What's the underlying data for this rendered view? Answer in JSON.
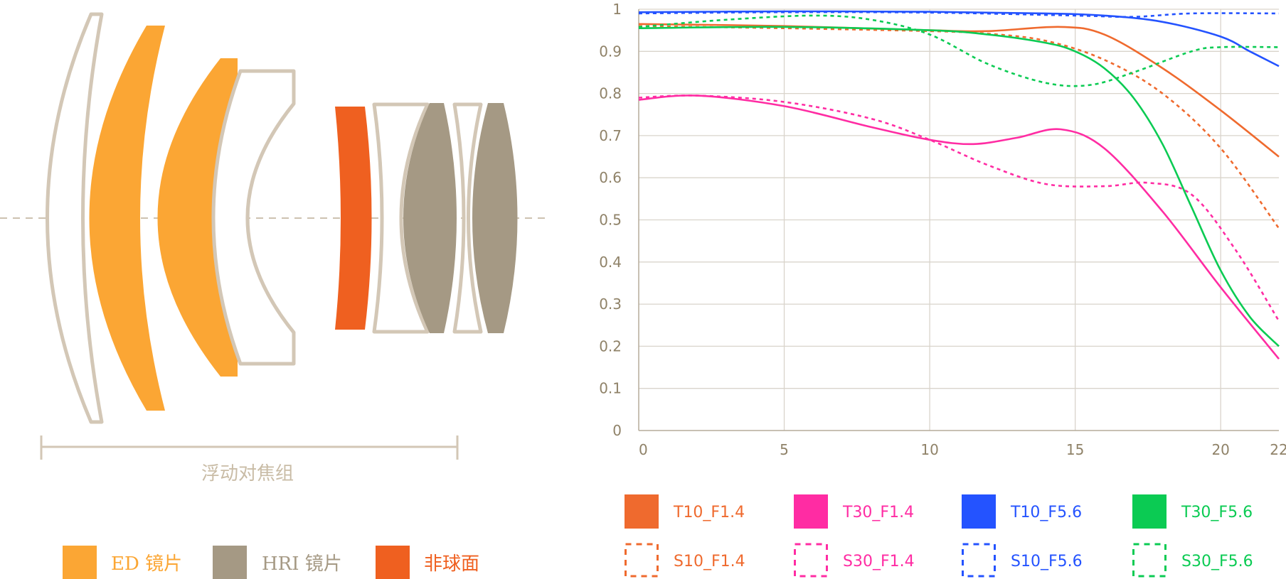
{
  "diagram": {
    "caption": "浮动对焦组",
    "legend": [
      {
        "label": "ED 镜片",
        "color": "#fba634"
      },
      {
        "label": "HRI 镜片",
        "color": "#a59984"
      },
      {
        "label": "非球面",
        "color": "#ef6020"
      }
    ],
    "colors": {
      "outline": "#d3c7b6",
      "axis": "#cdc2b0"
    }
  },
  "chart_data": {
    "type": "line",
    "title": "",
    "xlabel": "",
    "ylabel": "",
    "xlim": [
      0,
      22
    ],
    "ylim": [
      0,
      1
    ],
    "x_ticks": [
      "0",
      "5",
      "10",
      "15",
      "20",
      "22"
    ],
    "y_ticks": [
      "0",
      "0.1",
      "0.2",
      "0.3",
      "0.4",
      "0.5",
      "0.6",
      "0.7",
      "0.8",
      "0.9",
      "1"
    ],
    "grid": true,
    "series": [
      {
        "name": "T10_F1.4",
        "color": "#ef6a2e",
        "dashed": false,
        "x": [
          0,
          5,
          10,
          12,
          14.5,
          16,
          18,
          20,
          22
        ],
        "y": [
          0.965,
          0.96,
          0.95,
          0.948,
          0.958,
          0.94,
          0.86,
          0.76,
          0.65
        ]
      },
      {
        "name": "S10_F1.4",
        "color": "#ef6a2e",
        "dashed": true,
        "x": [
          0,
          5,
          10,
          12,
          14,
          16,
          18,
          20,
          22
        ],
        "y": [
          0.96,
          0.955,
          0.948,
          0.942,
          0.925,
          0.88,
          0.8,
          0.67,
          0.48
        ]
      },
      {
        "name": "T30_F1.4",
        "color": "#ff2ca3",
        "dashed": false,
        "x": [
          0,
          2,
          5,
          8,
          10,
          11.5,
          13,
          14.5,
          16,
          18,
          20,
          22
        ],
        "y": [
          0.785,
          0.795,
          0.77,
          0.72,
          0.69,
          0.68,
          0.695,
          0.715,
          0.67,
          0.52,
          0.34,
          0.17
        ]
      },
      {
        "name": "S30_F1.4",
        "color": "#ff2ca3",
        "dashed": true,
        "x": [
          0,
          2,
          5,
          8,
          10,
          12,
          14,
          16,
          17.5,
          19,
          20.5,
          22
        ],
        "y": [
          0.79,
          0.795,
          0.78,
          0.74,
          0.69,
          0.63,
          0.585,
          0.58,
          0.588,
          0.56,
          0.43,
          0.26
        ]
      },
      {
        "name": "T10_F5.6",
        "color": "#2453ff",
        "dashed": false,
        "x": [
          0,
          5,
          10,
          14,
          16,
          18,
          20,
          21,
          22
        ],
        "y": [
          0.993,
          0.995,
          0.994,
          0.99,
          0.985,
          0.97,
          0.935,
          0.9,
          0.865
        ]
      },
      {
        "name": "S10_F5.6",
        "color": "#2453ff",
        "dashed": true,
        "x": [
          0,
          5,
          10,
          15,
          17,
          19,
          22
        ],
        "y": [
          0.99,
          0.993,
          0.992,
          0.985,
          0.982,
          0.99,
          0.99
        ]
      },
      {
        "name": "T30_F5.6",
        "color": "#0bcb53",
        "dashed": false,
        "x": [
          0,
          5,
          10,
          12,
          14,
          15,
          16,
          17,
          18,
          19,
          20,
          21,
          22
        ],
        "y": [
          0.955,
          0.958,
          0.95,
          0.94,
          0.92,
          0.9,
          0.86,
          0.79,
          0.68,
          0.53,
          0.38,
          0.27,
          0.2
        ]
      },
      {
        "name": "S30_F5.6",
        "color": "#0bcb53",
        "dashed": true,
        "x": [
          0,
          3,
          6,
          8,
          10,
          12,
          14,
          15.5,
          17,
          19,
          20,
          22
        ],
        "y": [
          0.958,
          0.975,
          0.985,
          0.975,
          0.94,
          0.87,
          0.825,
          0.82,
          0.85,
          0.9,
          0.91,
          0.91
        ]
      }
    ]
  }
}
